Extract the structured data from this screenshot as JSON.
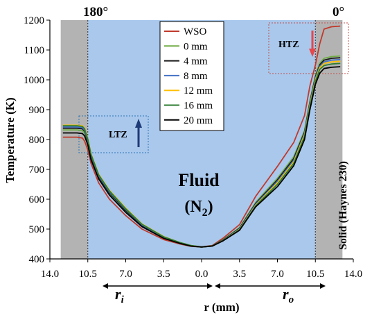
{
  "colors": {
    "fluid": "#a9c8ec",
    "solid": "#b3b3b3",
    "htz_box": "#c0504d",
    "ltz_box": "#2e75b6",
    "ltz_arrow": "#1f3a78",
    "htz_arrow": "#e8474b"
  },
  "labels": {
    "angle_left": "180°",
    "angle_right": "0°",
    "fluid": "Fluid",
    "fluid_formula": "(N",
    "fluid_sub": "2",
    "fluid_close": ")",
    "solid": "Solid (Haynes 230)",
    "htz": "HTZ",
    "ltz": "LTZ",
    "r_inner": "r",
    "r_inner_sub": "i",
    "r_outer": "r",
    "r_outer_sub": "o"
  },
  "chart_data": {
    "type": "line",
    "xlabel": "r (mm)",
    "ylabel": "Temperature (K)",
    "ylim": [
      400,
      1200
    ],
    "xlim": [
      -14,
      14
    ],
    "yticks": [
      400,
      500,
      600,
      700,
      800,
      900,
      1000,
      1100,
      1200
    ],
    "xticks": [
      {
        "pos": -14,
        "label": "14.0"
      },
      {
        "pos": -10.5,
        "label": "10.5"
      },
      {
        "pos": -7,
        "label": "7.0"
      },
      {
        "pos": -3.5,
        "label": "3.5"
      },
      {
        "pos": 0,
        "label": "0.0"
      },
      {
        "pos": 3.5,
        "label": "3.5"
      },
      {
        "pos": 7,
        "label": "7.0"
      },
      {
        "pos": 10.5,
        "label": "10.5"
      },
      {
        "pos": 14,
        "label": "14.0"
      }
    ],
    "legend_position": "top-center",
    "series": [
      {
        "name": "WSO",
        "color": "#c0392b",
        "x": [
          -12.8,
          -11.5,
          -11,
          -10.8,
          -10.5,
          -10.2,
          -9.5,
          -8.5,
          -7,
          -5.5,
          -3.5,
          -2,
          -1,
          0,
          1,
          2,
          3.5,
          5,
          7,
          8.5,
          9.5,
          10,
          10.5,
          10.9,
          11.3,
          12,
          12.8
        ],
        "y": [
          808,
          808,
          805,
          795,
          765,
          720,
          655,
          600,
          545,
          500,
          465,
          450,
          442,
          440,
          445,
          470,
          515,
          610,
          710,
          790,
          880,
          980,
          1050,
          1120,
          1170,
          1178,
          1180
        ]
      },
      {
        "name": "0 mm",
        "color": "#70ad47",
        "x": [
          -12.8,
          -11.5,
          -11,
          -10.8,
          -10.5,
          -10.2,
          -9.5,
          -8.5,
          -7,
          -5.5,
          -3.5,
          -2,
          -1,
          0,
          1,
          2,
          3.5,
          5,
          7,
          8.5,
          9.5,
          10,
          10.5,
          10.9,
          11.3,
          12,
          12.8
        ],
        "y": [
          832,
          832,
          830,
          822,
          790,
          740,
          672,
          618,
          560,
          510,
          470,
          452,
          443,
          440,
          444,
          465,
          505,
          590,
          670,
          742,
          830,
          930,
          1015,
          1055,
          1072,
          1078,
          1080
        ]
      },
      {
        "name": "4 mm",
        "color": "#1a1a1a",
        "x": [
          -12.8,
          -11.5,
          -11,
          -10.8,
          -10.5,
          -10.2,
          -9.5,
          -8.5,
          -7,
          -5.5,
          -3.5,
          -2,
          -1,
          0,
          1,
          2,
          3.5,
          5,
          7,
          8.5,
          9.5,
          10,
          10.5,
          10.9,
          11.3,
          12,
          12.8
        ],
        "y": [
          838,
          838,
          836,
          828,
          795,
          745,
          676,
          622,
          563,
          512,
          472,
          453,
          444,
          440,
          444,
          464,
          503,
          586,
          665,
          736,
          825,
          925,
          1010,
          1050,
          1066,
          1072,
          1074
        ]
      },
      {
        "name": "8 mm",
        "color": "#4472c4",
        "x": [
          -12.8,
          -11.5,
          -11,
          -10.8,
          -10.5,
          -10.2,
          -9.5,
          -8.5,
          -7,
          -5.5,
          -3.5,
          -2,
          -1,
          0,
          1,
          2,
          3.5,
          5,
          7,
          8.5,
          9.5,
          10,
          10.5,
          10.9,
          11.3,
          12,
          12.8
        ],
        "y": [
          842,
          842,
          840,
          832,
          798,
          748,
          679,
          625,
          566,
          514,
          473,
          454,
          444,
          440,
          443,
          463,
          501,
          583,
          660,
          730,
          820,
          920,
          1005,
          1045,
          1060,
          1066,
          1068
        ]
      },
      {
        "name": "12 mm",
        "color": "#ffc000",
        "x": [
          -12.8,
          -11.5,
          -11,
          -10.8,
          -10.5,
          -10.2,
          -9.5,
          -8.5,
          -7,
          -5.5,
          -3.5,
          -2,
          -1,
          0,
          1,
          2,
          3.5,
          5,
          7,
          8.5,
          9.5,
          10,
          10.5,
          10.9,
          11.3,
          12,
          12.8
        ],
        "y": [
          848,
          848,
          846,
          838,
          803,
          752,
          684,
          630,
          570,
          517,
          475,
          455,
          445,
          440,
          443,
          462,
          499,
          580,
          655,
          725,
          815,
          915,
          1000,
          1040,
          1055,
          1060,
          1062
        ]
      },
      {
        "name": "16 mm",
        "color": "#2e7d32",
        "x": [
          -12.8,
          -11.5,
          -11,
          -10.8,
          -10.5,
          -10.2,
          -9.5,
          -8.5,
          -7,
          -5.5,
          -3.5,
          -2,
          -1,
          0,
          1,
          2,
          3.5,
          5,
          7,
          8.5,
          9.5,
          10,
          10.5,
          10.9,
          11.3,
          12,
          12.8
        ],
        "y": [
          846,
          846,
          844,
          836,
          801,
          750,
          682,
          628,
          568,
          516,
          474,
          455,
          445,
          440,
          443,
          462,
          498,
          578,
          650,
          720,
          810,
          910,
          995,
          1035,
          1048,
          1053,
          1055
        ]
      },
      {
        "name": "20 mm",
        "color": "#000000",
        "x": [
          -12.8,
          -11.5,
          -11,
          -10.8,
          -10.5,
          -10.2,
          -9.5,
          -8.5,
          -7,
          -5.5,
          -3.5,
          -2,
          -1,
          0,
          1,
          2,
          3.5,
          5,
          7,
          8.5,
          9.5,
          10,
          10.5,
          10.9,
          11.3,
          12,
          12.8
        ],
        "y": [
          822,
          822,
          820,
          812,
          782,
          732,
          668,
          614,
          556,
          508,
          469,
          452,
          443,
          440,
          443,
          461,
          496,
          575,
          642,
          712,
          800,
          900,
          985,
          1022,
          1038,
          1042,
          1044
        ]
      }
    ]
  }
}
